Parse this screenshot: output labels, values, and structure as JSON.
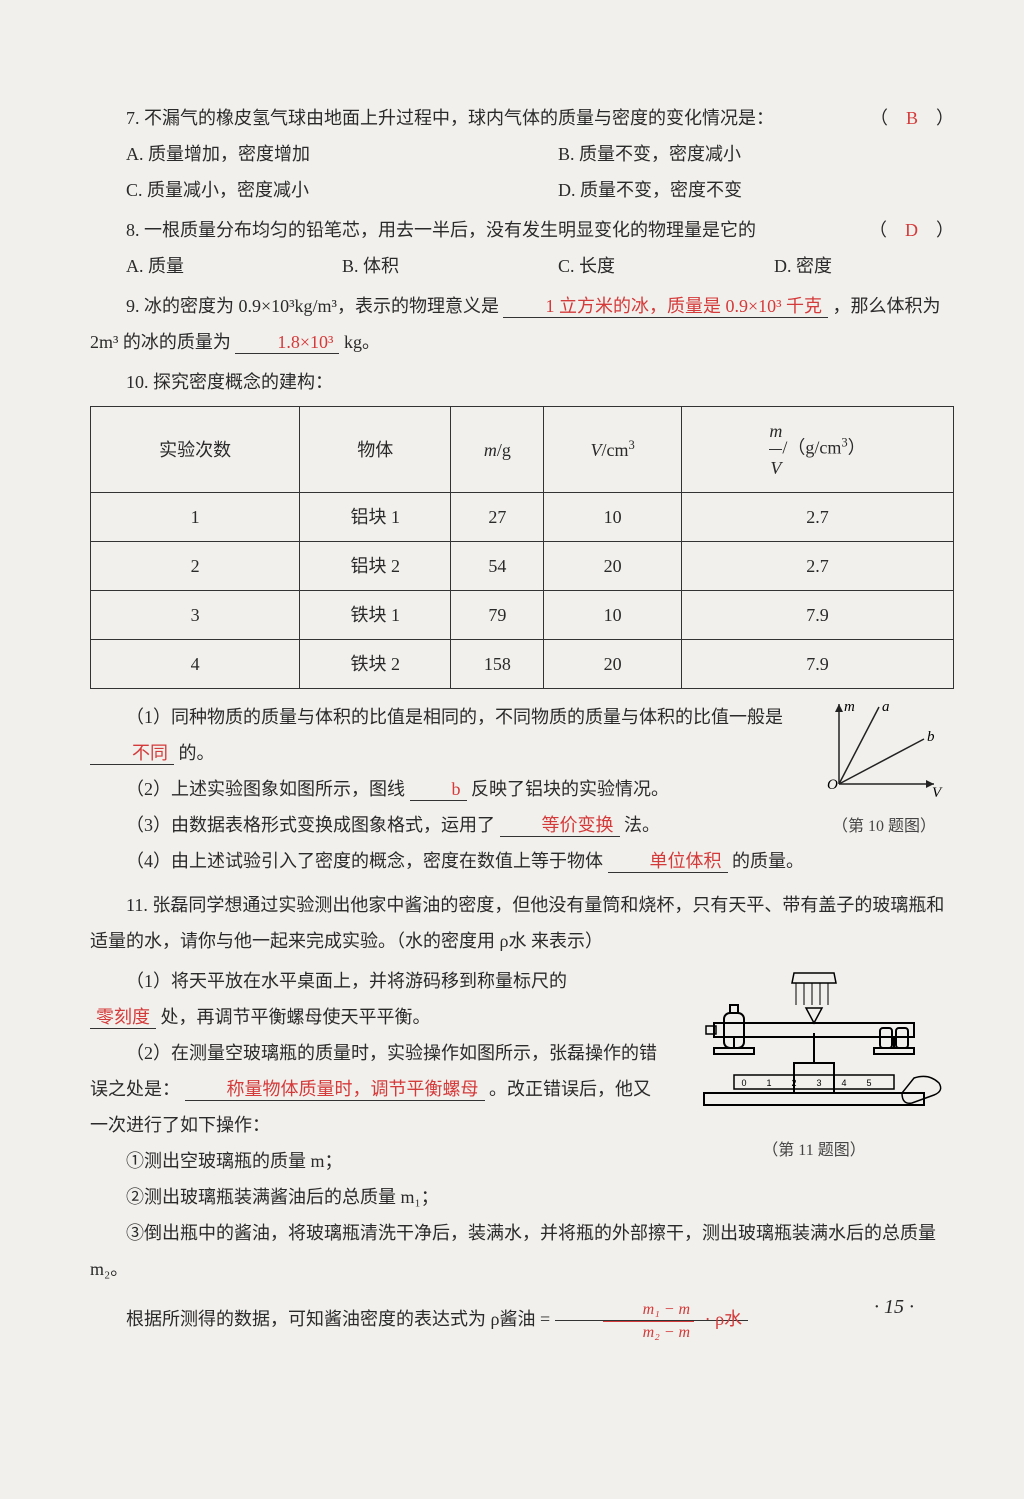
{
  "page": {
    "number": "· 15 ·",
    "background_color": "#f2f0ec",
    "text_color": "#2a2a2a",
    "answer_color": "#d43a3a",
    "font_size_pt": 14
  },
  "q7": {
    "stem": "7. 不漏气的橡皮氢气球由地面上升过程中，球内气体的质量与密度的变化情况是：",
    "optA": "A. 质量增加，密度增加",
    "optB": "B. 质量不变，密度减小",
    "optC": "C. 质量减小，密度减小",
    "optD": "D. 质量不变，密度不变",
    "answer": "B"
  },
  "q8": {
    "stem": "8. 一根质量分布均匀的铅笔芯，用去一半后，没有发生明显变化的物理量是它的",
    "optA": "A. 质量",
    "optB": "B. 体积",
    "optC": "C. 长度",
    "optD": "D. 密度",
    "answer": "D"
  },
  "q9": {
    "prefix": "9. 冰的密度为 0.9×10³kg/m³，表示的物理意义是",
    "blank1": "1 立方米的冰，质量是 0.9×10³ 千克",
    "mid": "，那么体积为 2m³ 的冰的质量为",
    "blank2": "1.8×10³",
    "suffix": " kg。"
  },
  "q10": {
    "title": "10. 探究密度概念的建构：",
    "table": {
      "headers": [
        "实验次数",
        "物体",
        "m/g",
        "V/cm³",
        "m/V /（g/cm³）"
      ],
      "rows": [
        [
          "1",
          "铝块 1",
          "27",
          "10",
          "2.7"
        ],
        [
          "2",
          "铝块 2",
          "54",
          "20",
          "2.7"
        ],
        [
          "3",
          "铁块 1",
          "79",
          "10",
          "7.9"
        ],
        [
          "4",
          "铁块 2",
          "158",
          "20",
          "7.9"
        ]
      ],
      "border_color": "#333333",
      "col_widths_pct": [
        16,
        22,
        20,
        20,
        22
      ]
    },
    "p1_a": "（1）同种物质的质量与体积的比值是相同的，不同物质的质量与体积的比值一般是",
    "p1_blank": "不同",
    "p1_b": "的。",
    "p2_a": "（2）上述实验图象如图所示，图线",
    "p2_blank": "b",
    "p2_b": "反映了铝块的实验情况。",
    "p3_a": "（3）由数据表格形式变换成图象格式，运用了",
    "p3_blank": "等价变换",
    "p3_b": "法。",
    "p4_a": "（4）由上述试验引入了密度的概念，密度在数值上等于物体",
    "p4_blank": "单位体积",
    "p4_b": "的质量。",
    "graph": {
      "axis_x_label": "V",
      "axis_y_label": "m",
      "origin_label": "O",
      "line_a_label": "a",
      "line_b_label": "b",
      "caption": "（第 10 题图）",
      "axis_color": "#222222",
      "line_color": "#222222"
    }
  },
  "q11": {
    "intro": "11. 张磊同学想通过实验测出他家中酱油的密度，但他没有量筒和烧杯，只有天平、带有盖子的玻璃瓶和适量的水，请你与他一起来完成实验。（水的密度用 ρ水 来表示）",
    "p1_a": "（1）将天平放在水平桌面上，并将游码移到称量标尺的",
    "p1_blank": "零刻度",
    "p1_b": "处，再调节平衡螺母使天平平衡。",
    "p2_a": "（2）在测量空玻璃瓶的质量时，实验操作如图所示，张磊操作的错误之处是：",
    "p2_blank": "称量物体质量时，调节平衡螺母",
    "p2_b": "。改正错误后，他又一次进行了如下操作：",
    "step1": "①测出空玻璃瓶的质量 m；",
    "step2": "②测出玻璃瓶装满酱油后的总质量 m₁；",
    "step3": "③倒出瓶中的酱油，将玻璃瓶清洗干净后，装满水，并将瓶的外部擦干，测出玻璃瓶装满水后的总质量 m₂。",
    "result_a": "根据所测得的数据，可知酱油密度的表达式为 ρ酱油 =",
    "formula_top": "m₁ − m",
    "formula_bot": "m₂ − m",
    "formula_tail": "· ρ水",
    "caption": "（第 11 题图）"
  }
}
